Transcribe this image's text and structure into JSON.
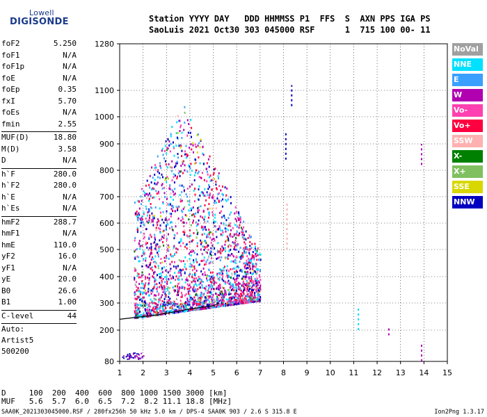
{
  "logo": {
    "top": "Lowell",
    "bottom": "DIGISONDE"
  },
  "header": {
    "line1": "Station YYYY DAY   DDD HHMMSS P1  FFS  S  AXN PPS IGA PS",
    "line2": "SaoLuis 2021 Oct30 303 045000 RSF      1  715 100 00- 11"
  },
  "params": {
    "group1": [
      {
        "label": "foF2",
        "value": "5.250"
      },
      {
        "label": "foF1",
        "value": "N/A"
      },
      {
        "label": "foF1p",
        "value": "N/A"
      },
      {
        "label": "foE",
        "value": "N/A"
      },
      {
        "label": "foEp",
        "value": "0.35"
      },
      {
        "label": "fxI",
        "value": "5.70"
      },
      {
        "label": "foEs",
        "value": "N/A"
      },
      {
        "label": "fmin",
        "value": "2.55"
      }
    ],
    "group2": [
      {
        "label": "MUF(D)",
        "value": "18.80"
      },
      {
        "label": "M(D)",
        "value": "3.58"
      },
      {
        "label": "D",
        "value": "N/A"
      }
    ],
    "group3": [
      {
        "label": "h`F",
        "value": "280.0"
      },
      {
        "label": "h`F2",
        "value": "280.0"
      },
      {
        "label": "h`E",
        "value": "N/A"
      },
      {
        "label": "h`Es",
        "value": "N/A"
      }
    ],
    "group4": [
      {
        "label": "hmF2",
        "value": "288.7"
      },
      {
        "label": "hmF1",
        "value": "N/A"
      },
      {
        "label": "hmE",
        "value": "110.0"
      },
      {
        "label": "yF2",
        "value": "16.0"
      },
      {
        "label": "yF1",
        "value": "N/A"
      },
      {
        "label": "yE",
        "value": "20.0"
      },
      {
        "label": "B0",
        "value": "26.6"
      },
      {
        "label": "B1",
        "value": "1.00"
      }
    ],
    "clevel": {
      "label": "C-level",
      "value": "44"
    },
    "auto": [
      "Auto:",
      "Artist5",
      "500200"
    ]
  },
  "legend": [
    {
      "label": "NoVal",
      "color": "#a0a0a0"
    },
    {
      "label": "NNE",
      "color": "#00e0ff"
    },
    {
      "label": "E",
      "color": "#3aa0ff"
    },
    {
      "label": "W",
      "color": "#b000b0"
    },
    {
      "label": "Vo-",
      "color": "#ff40b0"
    },
    {
      "label": "Vo+",
      "color": "#ff0040"
    },
    {
      "label": "SSW",
      "color": "#ffb0b0"
    },
    {
      "label": "X-",
      "color": "#008000"
    },
    {
      "label": "X+",
      "color": "#80c060"
    },
    {
      "label": "SSE",
      "color": "#d8d800"
    },
    {
      "label": "NNW",
      "color": "#0000c0"
    }
  ],
  "footer": {
    "d_line": "D     100  200  400  600  800 1000 1500 3000 [km]",
    "muf_line": "MUF   5.6  5.7  6.0  6.5  7.2  8.2 11.1 18.8 [MHz]",
    "file_info": "SAA0K_2021303045000.RSF / 280fx256h 50 kHz 5.0 km / DPS-4 SAA0K 903 / 2.6 S 315.8 E",
    "version": "Ion2Png 1.3.17"
  },
  "chart_data": {
    "type": "scatter",
    "x_ticks": [
      "1",
      "2",
      "3",
      "4",
      "5",
      "6",
      "7",
      "8",
      "9",
      "10",
      "11",
      "12",
      "13",
      "14",
      "15"
    ],
    "y_ticks": [
      "80",
      "200",
      "300",
      "400",
      "500",
      "600",
      "700",
      "800",
      "900",
      "1000",
      "1100",
      "1280"
    ],
    "xlim": [
      1,
      15
    ],
    "ylim": [
      80,
      1280
    ],
    "y_scale": "nonlinear",
    "grid": true,
    "legend_position": "right",
    "x_unit": "MHz",
    "y_unit": "km",
    "echo_region": {
      "freq_range": [
        1.0,
        7.5
      ],
      "height_range": [
        80,
        1100
      ]
    },
    "trace_curve": [
      [
        1.0,
        240
      ],
      [
        1.5,
        245
      ],
      [
        2.0,
        250
      ],
      [
        2.5,
        255
      ],
      [
        3.0,
        262
      ],
      [
        3.5,
        270
      ],
      [
        4.0,
        278
      ],
      [
        4.5,
        284
      ],
      [
        5.0,
        290
      ],
      [
        5.25,
        300
      ]
    ],
    "isolated_marks": [
      {
        "freq": 8.1,
        "h_range": [
          840,
          940
        ],
        "color": "#0000c0"
      },
      {
        "freq": 8.15,
        "h_range": [
          500,
          680
        ],
        "color": "#ffb0b0"
      },
      {
        "freq": 8.35,
        "h_range": [
          1040,
          1120
        ],
        "color": "#0000c0"
      },
      {
        "freq": 11.2,
        "h_range": [
          200,
          280
        ],
        "color": "#00e0ff"
      },
      {
        "freq": 12.5,
        "h_range": [
          180,
          210
        ],
        "color": "#b000b0"
      },
      {
        "freq": 13.9,
        "h_range": [
          820,
          900
        ],
        "color": "#b000b0"
      },
      {
        "freq": 13.9,
        "h_range": [
          80,
          150
        ],
        "color": "#b000b0"
      }
    ]
  }
}
